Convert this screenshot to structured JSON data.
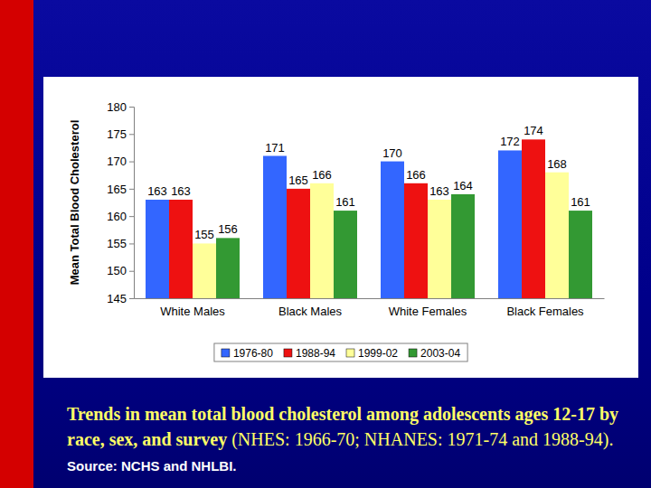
{
  "chart_data": {
    "type": "bar",
    "title": "Trends in mean total blood cholesterol among adolescents ages 12-17 by race, sex, and survey",
    "subtitle": "(NHES: 1966-70; NHANES: 1971-74 and 1988-94).",
    "annotations": [
      "Source: NCHS and NHLBI."
    ],
    "ylabel": "Mean Total Blood Cholesterol",
    "categories": [
      "White Males",
      "Black Males",
      "White Females",
      "Black Females"
    ],
    "series": [
      {
        "name": "1976-80",
        "color": "#3366ff",
        "values": [
          163,
          171,
          170,
          172
        ]
      },
      {
        "name": "1988-94",
        "color": "#ee1111",
        "values": [
          163,
          165,
          166,
          174
        ]
      },
      {
        "name": "1999-02",
        "color": "#ffff99",
        "values": [
          155,
          166,
          163,
          168
        ]
      },
      {
        "name": "2003-04",
        "color": "#339933",
        "values": [
          156,
          161,
          164,
          161
        ]
      }
    ],
    "ylim": [
      145,
      180
    ],
    "yticks": [
      145,
      150,
      155,
      160,
      165,
      170,
      175,
      180
    ],
    "grid": false,
    "legend": "bottom",
    "data_labels": true
  }
}
